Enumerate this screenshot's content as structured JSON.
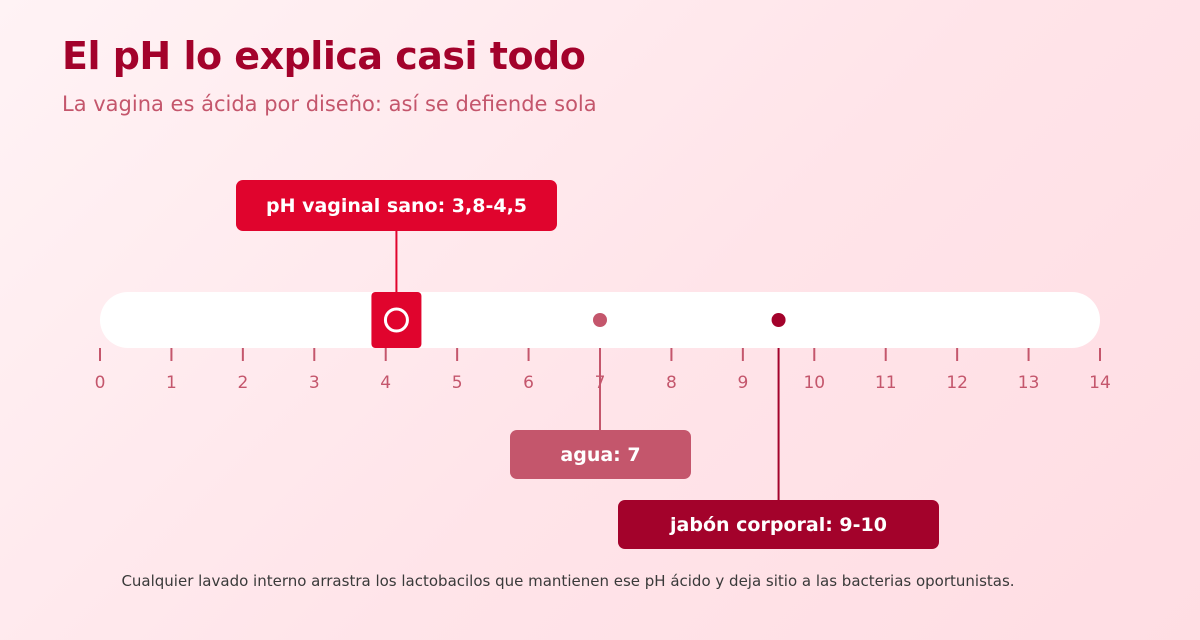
{
  "header": {
    "title": "El pH lo explica casi todo",
    "subtitle": "La vagina es ácida por diseño: así se defiende sola"
  },
  "scale": {
    "min": 0,
    "max": 14,
    "ticks": [
      "0",
      "1",
      "2",
      "3",
      "4",
      "5",
      "6",
      "7",
      "8",
      "9",
      "10",
      "11",
      "12",
      "13",
      "14"
    ]
  },
  "markers": [
    {
      "id": "healthy",
      "label": "pH vaginal sano: 3,8-4,5",
      "range": [
        3.8,
        4.5
      ],
      "color": "#e0042d"
    },
    {
      "id": "water",
      "label": "agua: 7",
      "value": 7,
      "color": "#c4566c"
    },
    {
      "id": "soap",
      "label": "jabón corporal: 9-10",
      "range": [
        9,
        10
      ],
      "value": 9.5,
      "color": "#a3022b"
    }
  ],
  "colors": {
    "title": "#a3022b",
    "subtitle": "#c4566c",
    "tick": "#c4566c",
    "bar": "#ffffff"
  },
  "footnote": "Cualquier lavado interno arrastra los lactobacilos que mantienen ese pH ácido y deja sitio a las bacterias oportunistas."
}
